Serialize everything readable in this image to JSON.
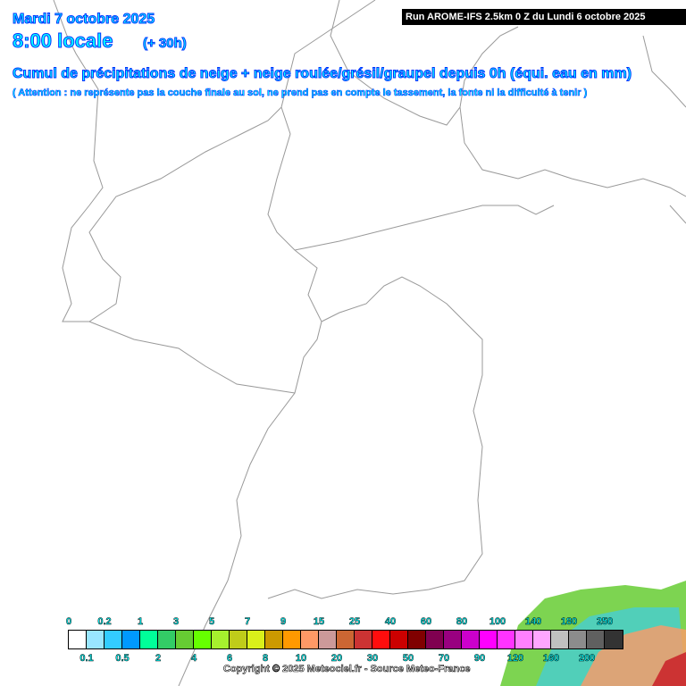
{
  "header": {
    "date": "Mardi 7 octobre 2025",
    "time": "8:00 locale",
    "lead": "(+ 30h)",
    "title": "Cumul de précipitations de neige + neige roulée/grésil/graupel depuis 0h (équi. eau en mm)",
    "note": "( Attention : ne représente pas la couche finale au sol, ne prend pas en compte le tassement, la fonte ni la difficulté à tenir )",
    "run": "Run AROME-IFS 2.5km 0 Z du Lundi 6 octobre 2025"
  },
  "legend": {
    "labels": [
      "0",
      "0.1",
      "0.2",
      "0.5",
      "1",
      "2",
      "3",
      "4",
      "5",
      "6",
      "7",
      "8",
      "9",
      "10",
      "15",
      "20",
      "25",
      "30",
      "40",
      "50",
      "60",
      "70",
      "80",
      "90",
      "100",
      "120",
      "140",
      "160",
      "180",
      "200",
      "250"
    ],
    "colors": [
      "#ffffff",
      "#99e6ff",
      "#33ccff",
      "#0099ff",
      "#00ff99",
      "#33cc66",
      "#66cc33",
      "#66ff00",
      "#a6f02e",
      "#bfcc1a",
      "#d9f01a",
      "#cc9900",
      "#ff9900",
      "#ff9966",
      "#cc9999",
      "#cc6633",
      "#cc3333",
      "#ff0d0d",
      "#cc0000",
      "#800000",
      "#800050",
      "#990080",
      "#cc00cc",
      "#ff00ff",
      "#ff33ff",
      "#ff80ff",
      "#ffa6ff",
      "#c0c0c0",
      "#8c8c8c",
      "#606060",
      "#333333"
    ]
  },
  "copyright": "Copyright © 2025 Meteociel.fr - Source Meteo-France"
}
